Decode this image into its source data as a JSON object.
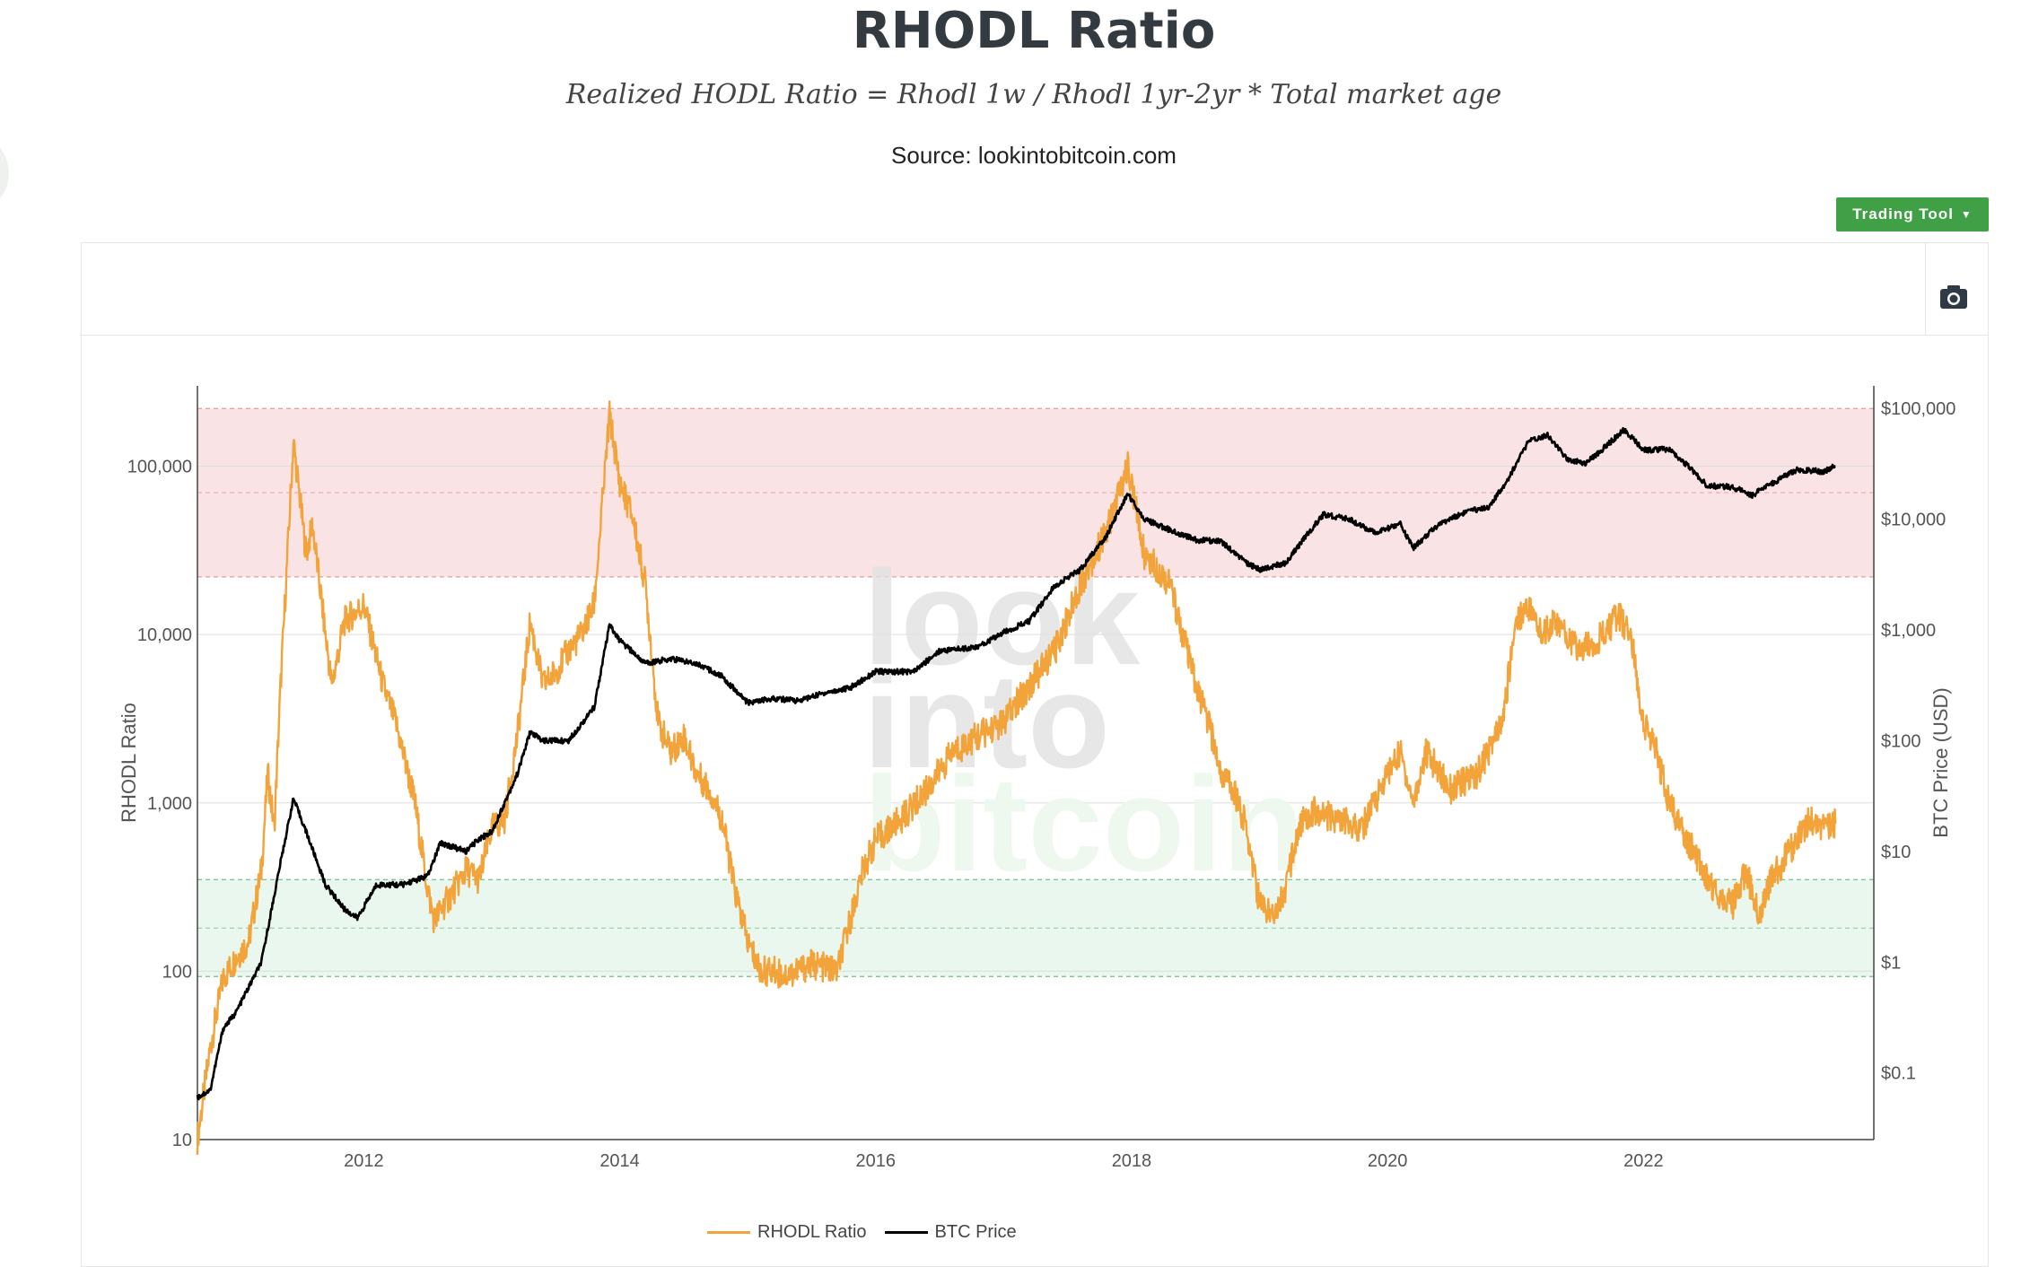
{
  "page": {
    "title": "RHODL Ratio",
    "formula": "Realized HODL Ratio = Rhodl 1w / Rhodl 1yr-2yr * Total market age",
    "source": "Source: lookintobitcoin.com"
  },
  "toolbar": {
    "trading_tool_label": "Trading Tool",
    "camera_icon": "camera-icon"
  },
  "watermark": [
    "look",
    "into",
    "bitcoin"
  ],
  "colors": {
    "rhodl": "#f2a33a",
    "btc": "#000000",
    "red_zone": "#f9e3e4",
    "green_zone": "#e9f7ee",
    "brand_green": "#3fa046"
  },
  "chart_data": {
    "type": "line",
    "xlabel": "",
    "ylabel": "RHODL Ratio",
    "y2label": "BTC Price (USD)",
    "y_scale": "log",
    "y2_scale": "log",
    "xlim": [
      2010.7,
      2023.8
    ],
    "ylim": [
      10,
      300000
    ],
    "y2lim": [
      0.025,
      160000
    ],
    "x_ticks": [
      "2012",
      "2014",
      "2016",
      "2018",
      "2020",
      "2022"
    ],
    "y_ticks": [
      "10",
      "100",
      "1,000",
      "10,000",
      "100,000"
    ],
    "y2_ticks": [
      "$0.1",
      "$1",
      "$10",
      "$100",
      "$1,000",
      "$10,000",
      "$100,000"
    ],
    "bands": [
      {
        "name": "top zone",
        "range": [
          22000,
          220000
        ],
        "color": "#f9e3e4"
      },
      {
        "name": "bottom zone",
        "range": [
          93,
          350
        ],
        "color": "#e9f7ee"
      }
    ],
    "legend": {
      "position": "bottom-center",
      "entries": [
        "RHODL Ratio",
        "BTC Price"
      ]
    },
    "series": [
      {
        "name": "RHODL Ratio",
        "axis": "left",
        "color": "#f2a33a",
        "points": [
          [
            2010.7,
            10
          ],
          [
            2010.8,
            35
          ],
          [
            2010.9,
            90
          ],
          [
            2011.0,
            120
          ],
          [
            2011.1,
            150
          ],
          [
            2011.2,
            400
          ],
          [
            2011.25,
            1500
          ],
          [
            2011.3,
            700
          ],
          [
            2011.35,
            5000
          ],
          [
            2011.45,
            140000
          ],
          [
            2011.55,
            30000
          ],
          [
            2011.6,
            45000
          ],
          [
            2011.7,
            10000
          ],
          [
            2011.75,
            5000
          ],
          [
            2011.85,
            12000
          ],
          [
            2012.0,
            15000
          ],
          [
            2012.15,
            5000
          ],
          [
            2012.25,
            3000
          ],
          [
            2012.4,
            1000
          ],
          [
            2012.5,
            300
          ],
          [
            2012.55,
            200
          ],
          [
            2012.7,
            300
          ],
          [
            2012.8,
            400
          ],
          [
            2012.9,
            350
          ],
          [
            2013.0,
            700
          ],
          [
            2013.1,
            800
          ],
          [
            2013.2,
            2500
          ],
          [
            2013.3,
            12000
          ],
          [
            2013.4,
            5000
          ],
          [
            2013.5,
            6000
          ],
          [
            2013.6,
            8000
          ],
          [
            2013.7,
            10000
          ],
          [
            2013.8,
            15000
          ],
          [
            2013.92,
            200000
          ],
          [
            2014.0,
            80000
          ],
          [
            2014.1,
            50000
          ],
          [
            2014.2,
            20000
          ],
          [
            2014.3,
            3000
          ],
          [
            2014.4,
            2000
          ],
          [
            2014.5,
            2500
          ],
          [
            2014.6,
            1500
          ],
          [
            2014.7,
            1200
          ],
          [
            2014.8,
            800
          ],
          [
            2014.9,
            300
          ],
          [
            2015.0,
            150
          ],
          [
            2015.1,
            100
          ],
          [
            2015.2,
            100
          ],
          [
            2015.3,
            95
          ],
          [
            2015.5,
            110
          ],
          [
            2015.7,
            100
          ],
          [
            2015.8,
            200
          ],
          [
            2015.9,
            400
          ],
          [
            2016.0,
            600
          ],
          [
            2016.2,
            800
          ],
          [
            2016.4,
            1200
          ],
          [
            2016.6,
            2000
          ],
          [
            2016.8,
            2500
          ],
          [
            2017.0,
            3000
          ],
          [
            2017.2,
            5000
          ],
          [
            2017.4,
            8000
          ],
          [
            2017.6,
            20000
          ],
          [
            2017.8,
            40000
          ],
          [
            2017.97,
            100000
          ],
          [
            2018.1,
            30000
          ],
          [
            2018.2,
            25000
          ],
          [
            2018.3,
            20000
          ],
          [
            2018.4,
            10000
          ],
          [
            2018.5,
            5000
          ],
          [
            2018.6,
            3000
          ],
          [
            2018.7,
            1500
          ],
          [
            2018.8,
            1200
          ],
          [
            2018.9,
            700
          ],
          [
            2019.0,
            250
          ],
          [
            2019.1,
            220
          ],
          [
            2019.2,
            300
          ],
          [
            2019.3,
            700
          ],
          [
            2019.4,
            900
          ],
          [
            2019.6,
            800
          ],
          [
            2019.8,
            700
          ],
          [
            2020.0,
            1500
          ],
          [
            2020.1,
            2000
          ],
          [
            2020.2,
            1000
          ],
          [
            2020.3,
            2000
          ],
          [
            2020.5,
            1200
          ],
          [
            2020.7,
            1500
          ],
          [
            2020.9,
            3000
          ],
          [
            2021.0,
            12000
          ],
          [
            2021.1,
            15000
          ],
          [
            2021.2,
            10000
          ],
          [
            2021.3,
            12000
          ],
          [
            2021.5,
            8000
          ],
          [
            2021.7,
            10000
          ],
          [
            2021.8,
            13000
          ],
          [
            2021.9,
            10000
          ],
          [
            2022.0,
            3000
          ],
          [
            2022.1,
            2000
          ],
          [
            2022.2,
            1000
          ],
          [
            2022.3,
            700
          ],
          [
            2022.4,
            500
          ],
          [
            2022.5,
            350
          ],
          [
            2022.6,
            280
          ],
          [
            2022.7,
            250
          ],
          [
            2022.8,
            400
          ],
          [
            2022.9,
            220
          ],
          [
            2023.0,
            350
          ],
          [
            2023.2,
            600
          ],
          [
            2023.3,
            800
          ],
          [
            2023.4,
            700
          ],
          [
            2023.5,
            750
          ]
        ]
      },
      {
        "name": "BTC Price",
        "axis": "right",
        "color": "#000000",
        "points": [
          [
            2010.7,
            0.06
          ],
          [
            2010.8,
            0.07
          ],
          [
            2010.9,
            0.25
          ],
          [
            2011.0,
            0.35
          ],
          [
            2011.2,
            1
          ],
          [
            2011.35,
            8
          ],
          [
            2011.45,
            30
          ],
          [
            2011.55,
            15
          ],
          [
            2011.7,
            5
          ],
          [
            2011.85,
            3
          ],
          [
            2011.95,
            2.5
          ],
          [
            2012.1,
            5
          ],
          [
            2012.3,
            5
          ],
          [
            2012.5,
            6
          ],
          [
            2012.6,
            12
          ],
          [
            2012.8,
            10
          ],
          [
            2012.9,
            13
          ],
          [
            2013.0,
            15
          ],
          [
            2013.2,
            50
          ],
          [
            2013.3,
            120
          ],
          [
            2013.4,
            100
          ],
          [
            2013.6,
            100
          ],
          [
            2013.8,
            200
          ],
          [
            2013.92,
            1100
          ],
          [
            2014.0,
            800
          ],
          [
            2014.2,
            500
          ],
          [
            2014.4,
            550
          ],
          [
            2014.6,
            500
          ],
          [
            2014.8,
            380
          ],
          [
            2015.0,
            220
          ],
          [
            2015.2,
            240
          ],
          [
            2015.4,
            230
          ],
          [
            2015.6,
            270
          ],
          [
            2015.8,
            300
          ],
          [
            2016.0,
            420
          ],
          [
            2016.3,
            420
          ],
          [
            2016.5,
            650
          ],
          [
            2016.8,
            700
          ],
          [
            2017.0,
            950
          ],
          [
            2017.2,
            1200
          ],
          [
            2017.4,
            2500
          ],
          [
            2017.6,
            3500
          ],
          [
            2017.8,
            7000
          ],
          [
            2017.97,
            17000
          ],
          [
            2018.1,
            10000
          ],
          [
            2018.3,
            8000
          ],
          [
            2018.5,
            6500
          ],
          [
            2018.7,
            6300
          ],
          [
            2018.9,
            4000
          ],
          [
            2019.0,
            3500
          ],
          [
            2019.2,
            4000
          ],
          [
            2019.4,
            8000
          ],
          [
            2019.5,
            11000
          ],
          [
            2019.7,
            10000
          ],
          [
            2019.9,
            7500
          ],
          [
            2020.1,
            9000
          ],
          [
            2020.2,
            5500
          ],
          [
            2020.4,
            9000
          ],
          [
            2020.6,
            11500
          ],
          [
            2020.8,
            13000
          ],
          [
            2020.95,
            24000
          ],
          [
            2021.1,
            50000
          ],
          [
            2021.25,
            58000
          ],
          [
            2021.4,
            35000
          ],
          [
            2021.55,
            32000
          ],
          [
            2021.7,
            45000
          ],
          [
            2021.85,
            64000
          ],
          [
            2022.0,
            42000
          ],
          [
            2022.2,
            43000
          ],
          [
            2022.35,
            30000
          ],
          [
            2022.5,
            20000
          ],
          [
            2022.7,
            19500
          ],
          [
            2022.85,
            16500
          ],
          [
            2023.0,
            21000
          ],
          [
            2023.2,
            28000
          ],
          [
            2023.4,
            27000
          ],
          [
            2023.5,
            30000
          ]
        ]
      }
    ]
  }
}
